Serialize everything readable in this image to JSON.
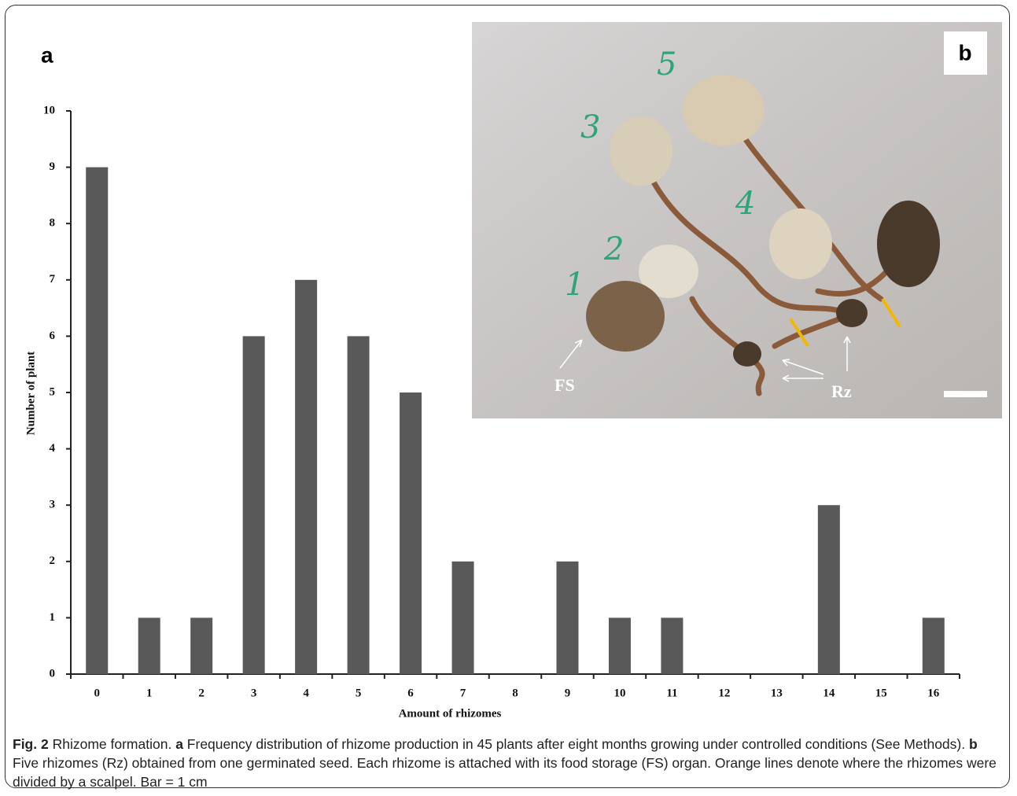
{
  "panel_labels": {
    "a": "a",
    "b": "b"
  },
  "chart_data": {
    "type": "bar",
    "x_label": "Amount of rhizomes",
    "y_label": "Number of plant",
    "categories": [
      "0",
      "1",
      "2",
      "3",
      "4",
      "5",
      "6",
      "7",
      "8",
      "9",
      "10",
      "11",
      "12",
      "13",
      "14",
      "15",
      "16"
    ],
    "values": [
      9,
      1,
      1,
      6,
      7,
      6,
      5,
      2,
      0,
      2,
      1,
      1,
      0,
      0,
      3,
      0,
      1
    ],
    "color": "#595959",
    "ylim": [
      0,
      10
    ],
    "yticks": [
      0,
      1,
      2,
      3,
      4,
      5,
      6,
      7,
      8,
      9,
      10
    ],
    "grid": false
  },
  "photo": {
    "numbers": [
      "1",
      "2",
      "3",
      "4",
      "5"
    ],
    "fs": "FS",
    "rz": "Rz"
  },
  "caption": {
    "fig": "Fig. 2",
    "title": "Rhizome formation.",
    "a": "a",
    "a_text": "Frequency distribution of rhizome production in 45 plants after eight months growing under controlled conditions (See Methods).",
    "b": "b",
    "b_text": "Five rhizomes (Rz) obtained from one germinated seed. Each rhizome is attached with its food storage (FS) organ. Orange lines denote where the rhizomes were divided by a scalpel. Bar = 1 cm"
  }
}
